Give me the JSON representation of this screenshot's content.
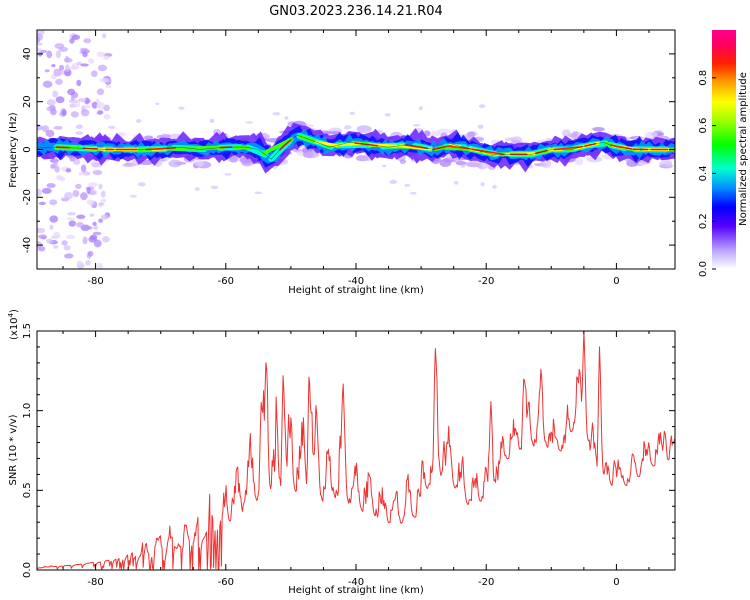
{
  "title": "GN03.2023.236.14.21.R04",
  "chart_data": [
    {
      "type": "heatmap",
      "xlabel": "Height of straight line (km)",
      "ylabel": "Frequency (Hz)",
      "xlim": [
        -89,
        9
      ],
      "ylim": [
        -50,
        50
      ],
      "xticks": [
        -80,
        -60,
        -40,
        -20,
        0
      ],
      "yticks": [
        -40,
        -20,
        0,
        20,
        40
      ],
      "colorbar": {
        "label": "Normalized spectral amplitude",
        "range": [
          0.0,
          1.0
        ],
        "ticks": [
          0.0,
          0.2,
          0.4,
          0.6,
          0.8
        ],
        "tick_labels": [
          "0.0",
          "0.2",
          "0.4",
          "0.6",
          "0.8"
        ]
      },
      "ridge": [
        [
          -89,
          0.5
        ],
        [
          -86,
          1
        ],
        [
          -82,
          0.5
        ],
        [
          -78,
          0
        ],
        [
          -74,
          0
        ],
        [
          -70,
          0
        ],
        [
          -67,
          1
        ],
        [
          -64,
          0
        ],
        [
          -60,
          1
        ],
        [
          -57,
          1
        ],
        [
          -55,
          0
        ],
        [
          -53,
          -4
        ],
        [
          -51,
          2
        ],
        [
          -49,
          6
        ],
        [
          -47,
          4
        ],
        [
          -44,
          1
        ],
        [
          -41,
          3
        ],
        [
          -38,
          2
        ],
        [
          -35,
          1
        ],
        [
          -32,
          2
        ],
        [
          -28,
          0
        ],
        [
          -25,
          2
        ],
        [
          -22,
          0
        ],
        [
          -19,
          -2
        ],
        [
          -16,
          -2
        ],
        [
          -13,
          -2
        ],
        [
          -10,
          0
        ],
        [
          -7,
          0
        ],
        [
          -4,
          2
        ],
        [
          -2,
          3
        ],
        [
          0,
          1
        ],
        [
          3,
          0
        ],
        [
          6,
          0
        ],
        [
          9,
          0
        ]
      ]
    },
    {
      "type": "line",
      "xlabel": "Height of straight line (km)",
      "ylabel": "SNR (10 * v/v)",
      "yscale_label": "(x10",
      "yscale_exponent": "4",
      "yscale_close": ")",
      "xlim": [
        -89,
        9
      ],
      "ylim": [
        0,
        15000
      ],
      "xticks": [
        -80,
        -60,
        -40,
        -20,
        0
      ],
      "yticks": [
        0,
        5000,
        10000,
        15000
      ],
      "ytick_labels": [
        "0.0",
        "0.5",
        "1.0",
        "1.5"
      ],
      "color": "#ee3333",
      "envelope": [
        [
          -89,
          150
        ],
        [
          -84,
          300
        ],
        [
          -80,
          500
        ],
        [
          -76,
          800
        ],
        [
          -73,
          1500
        ],
        [
          -70,
          2000
        ],
        [
          -67,
          2700
        ],
        [
          -64,
          3800
        ],
        [
          -61,
          5000
        ],
        [
          -58,
          6500
        ],
        [
          -55,
          8500
        ],
        [
          -52,
          9800
        ],
        [
          -49,
          9500
        ],
        [
          -46,
          8500
        ],
        [
          -43,
          7500
        ],
        [
          -40,
          6500
        ],
        [
          -37,
          5500
        ],
        [
          -34,
          4500
        ],
        [
          -31,
          5500
        ],
        [
          -28,
          8500
        ],
        [
          -26,
          8500
        ],
        [
          -23,
          6000
        ],
        [
          -20,
          6500
        ],
        [
          -17,
          8500
        ],
        [
          -14,
          9500
        ],
        [
          -11,
          9500
        ],
        [
          -8,
          9000
        ],
        [
          -6,
          12000
        ],
        [
          -4,
          8500
        ],
        [
          -2,
          6500
        ],
        [
          0,
          6500
        ],
        [
          2,
          6500
        ],
        [
          5,
          8000
        ],
        [
          9,
          8200
        ]
      ],
      "peaks": [
        [
          -53.8,
          13700
        ],
        [
          -51.2,
          12200
        ],
        [
          -47.2,
          12800
        ],
        [
          -42.0,
          12100
        ],
        [
          -27.8,
          13900
        ],
        [
          -19.3,
          10800
        ],
        [
          -14.2,
          12300
        ],
        [
          -11.6,
          12600
        ],
        [
          -5.0,
          15000
        ],
        [
          -2.6,
          14000
        ],
        [
          -0.3,
          6900
        ],
        [
          2.6,
          7300
        ],
        [
          4.0,
          7000
        ],
        [
          7.4,
          8900
        ],
        [
          9.0,
          8400
        ]
      ]
    }
  ]
}
